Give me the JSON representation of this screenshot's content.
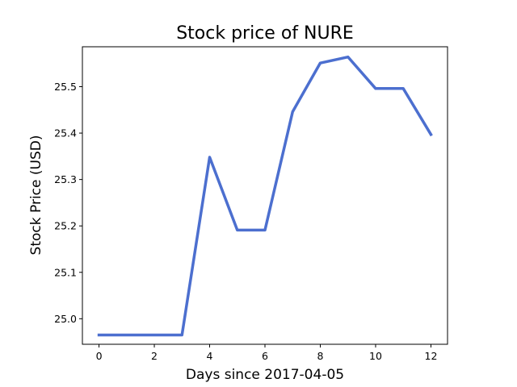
{
  "chart_data": {
    "type": "line",
    "title": "Stock price of NURE",
    "xlabel": "Days since 2017-04-05",
    "ylabel": "Stock Price (USD)",
    "x": [
      0,
      1,
      2,
      3,
      4,
      5,
      6,
      7,
      8,
      9,
      10,
      11,
      12
    ],
    "series": [
      {
        "values": [
          24.965,
          24.965,
          24.965,
          24.965,
          25.348,
          25.191,
          25.191,
          25.446,
          25.551,
          25.564,
          25.496,
          25.496,
          25.397
        ],
        "color": "#4c6fcf"
      }
    ],
    "xlim": [
      -0.6,
      12.6
    ],
    "ylim": [
      24.945,
      25.586
    ],
    "xticks": [
      "0",
      "2",
      "4",
      "6",
      "8",
      "10",
      "12"
    ],
    "yticks": [
      "25.0",
      "25.1",
      "25.2",
      "25.3",
      "25.4",
      "25.5"
    ],
    "grid": false
  }
}
